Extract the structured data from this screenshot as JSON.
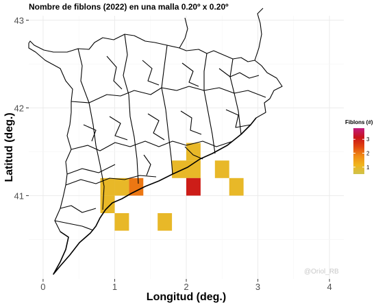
{
  "chart_data": {
    "type": "heatmap",
    "title": "Nombre de fiblons (2022) en una malla 0.20º x 0.20º",
    "xlabel": "Longitud (deg.)",
    "ylabel": "Latitud (deg.)",
    "xlim": [
      -0.2,
      4.2
    ],
    "ylim": [
      40.05,
      43.05
    ],
    "x_ticks": [
      0,
      1,
      2,
      3,
      4
    ],
    "x_tick_labels": [
      "0",
      "1",
      "2",
      "3",
      "4"
    ],
    "y_ticks": [
      41,
      42,
      43
    ],
    "y_tick_labels": [
      "41",
      "42",
      "43"
    ],
    "grid": true,
    "cell_size_deg": 0.2,
    "cells": [
      {
        "lon": 0.9,
        "lat": 41.1,
        "value": 1
      },
      {
        "lon": 0.9,
        "lat": 40.9,
        "value": 1
      },
      {
        "lon": 1.1,
        "lat": 41.1,
        "value": 1
      },
      {
        "lon": 1.3,
        "lat": 41.1,
        "value": 2
      },
      {
        "lon": 1.1,
        "lat": 40.7,
        "value": 1
      },
      {
        "lon": 1.7,
        "lat": 40.7,
        "value": 1
      },
      {
        "lon": 1.9,
        "lat": 41.3,
        "value": 1
      },
      {
        "lon": 2.1,
        "lat": 41.3,
        "value": 1
      },
      {
        "lon": 2.1,
        "lat": 41.5,
        "value": 1
      },
      {
        "lon": 2.1,
        "lat": 41.1,
        "value": 3
      },
      {
        "lon": 2.5,
        "lat": 41.3,
        "value": 1
      },
      {
        "lon": 2.7,
        "lat": 41.1,
        "value": 1
      }
    ],
    "legend": {
      "title": "Fiblons (#)",
      "placement": "right",
      "range": [
        0.5,
        3.8
      ],
      "ticks": [
        1,
        2,
        3
      ],
      "tick_labels": [
        "1",
        "2",
        "3"
      ],
      "colors": [
        "#cfc24b",
        "#f0b51d",
        "#f08a14",
        "#e0440f",
        "#c8131a",
        "#c01a7c"
      ]
    },
    "credit": "@Oriol_RB"
  },
  "colors": {
    "panel_background": "#ffffff",
    "grid_major": "#ebebeb",
    "grid_minor": "#f5f5f5"
  }
}
